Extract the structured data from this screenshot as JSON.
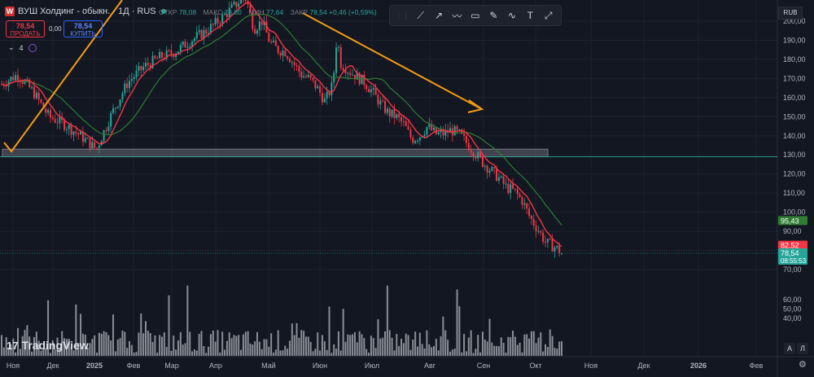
{
  "header": {
    "title": "ВУШ Холдинг - обыкн. · 1Д · RUS",
    "ohlc": [
      {
        "label": "ОТКР",
        "value": "78,08"
      },
      {
        "label": "МАКС",
        "value": "78,80"
      },
      {
        "label": "МИН",
        "value": "77,64"
      },
      {
        "label": "ЗАКР",
        "value": "78,54 +0,46 (+0,59%)"
      }
    ]
  },
  "trade": {
    "sell_price": "78,54",
    "sell_label": "ПРОДАТЬ",
    "spread": "0,00",
    "buy_price": "78,54",
    "buy_label": "КУПИТЬ"
  },
  "indicators": {
    "count": "4"
  },
  "currency": "RUB",
  "branding": "TradingView",
  "scale_buttons": {
    "auto": "A",
    "log": "Л"
  },
  "toolbar_icons": [
    "trendline-icon",
    "ray-icon",
    "polyline-icon",
    "rectangle-icon",
    "brush-icon",
    "curve-icon",
    "text-icon",
    "measure-icon"
  ],
  "colors": {
    "up": "#26a69a",
    "down": "#f23645",
    "ma_fast": "#f23645",
    "ma_slow": "#2e7d32",
    "annotation": "#f39c12",
    "zone": "#787b86",
    "bg": "#131722"
  },
  "chart_data": {
    "type": "candlestick",
    "x_labels": [
      "Ноя",
      "Дек",
      "2025",
      "Фев",
      "Мар",
      "Апр",
      "Май",
      "Июн",
      "Июл",
      "Авг",
      "Сен",
      "Окт",
      "Ноя",
      "Дек",
      "2026",
      "Фев"
    ],
    "price_ticks": [
      "200,00",
      "190,00",
      "180,00",
      "170,00",
      "160,00",
      "150,00",
      "140,00",
      "130,00",
      "120,00",
      "110,00",
      "100,00",
      "90,00",
      "80,00",
      "70,00"
    ],
    "volume_ticks": [
      "60,00",
      "50,00",
      "40,00"
    ],
    "ylim": [
      70,
      205
    ],
    "price_path_anchors": [
      [
        0,
        167
      ],
      [
        4,
        172
      ],
      [
        8,
        163
      ],
      [
        12,
        150
      ],
      [
        16,
        146
      ],
      [
        20,
        140
      ],
      [
        24,
        133
      ],
      [
        28,
        152
      ],
      [
        32,
        168
      ],
      [
        36,
        176
      ],
      [
        40,
        181
      ],
      [
        44,
        184
      ],
      [
        48,
        190
      ],
      [
        52,
        195
      ],
      [
        56,
        202
      ],
      [
        60,
        210
      ],
      [
        62,
        212
      ],
      [
        64,
        196
      ],
      [
        66,
        200
      ],
      [
        68,
        189
      ],
      [
        70,
        185
      ],
      [
        72,
        184
      ],
      [
        74,
        178
      ],
      [
        76,
        172
      ],
      [
        78,
        170
      ],
      [
        80,
        165
      ],
      [
        82,
        158
      ],
      [
        84,
        167
      ],
      [
        85,
        192
      ],
      [
        86,
        178
      ],
      [
        88,
        174
      ],
      [
        90,
        171
      ],
      [
        92,
        168
      ],
      [
        94,
        163
      ],
      [
        96,
        157
      ],
      [
        98,
        152
      ],
      [
        100,
        150
      ],
      [
        102,
        146
      ],
      [
        104,
        138
      ],
      [
        106,
        140
      ],
      [
        108,
        145
      ],
      [
        110,
        141
      ],
      [
        112,
        141
      ],
      [
        114,
        143
      ],
      [
        116,
        141
      ],
      [
        118,
        136
      ],
      [
        120,
        131
      ],
      [
        122,
        126
      ],
      [
        124,
        122
      ],
      [
        126,
        118
      ],
      [
        128,
        113
      ],
      [
        130,
        111
      ],
      [
        132,
        106
      ],
      [
        134,
        97
      ],
      [
        136,
        91
      ],
      [
        138,
        84
      ],
      [
        140,
        82
      ],
      [
        142,
        79
      ]
    ],
    "last_close": 78.54,
    "labels_right": [
      {
        "value": "95,43",
        "color": "#2e7d32"
      },
      {
        "value": "82,52",
        "color": "#f23645"
      },
      {
        "value": "78,54",
        "color": "#26a69a"
      }
    ],
    "countdown": "08:55:53",
    "support_zone": [
      129,
      133
    ]
  }
}
